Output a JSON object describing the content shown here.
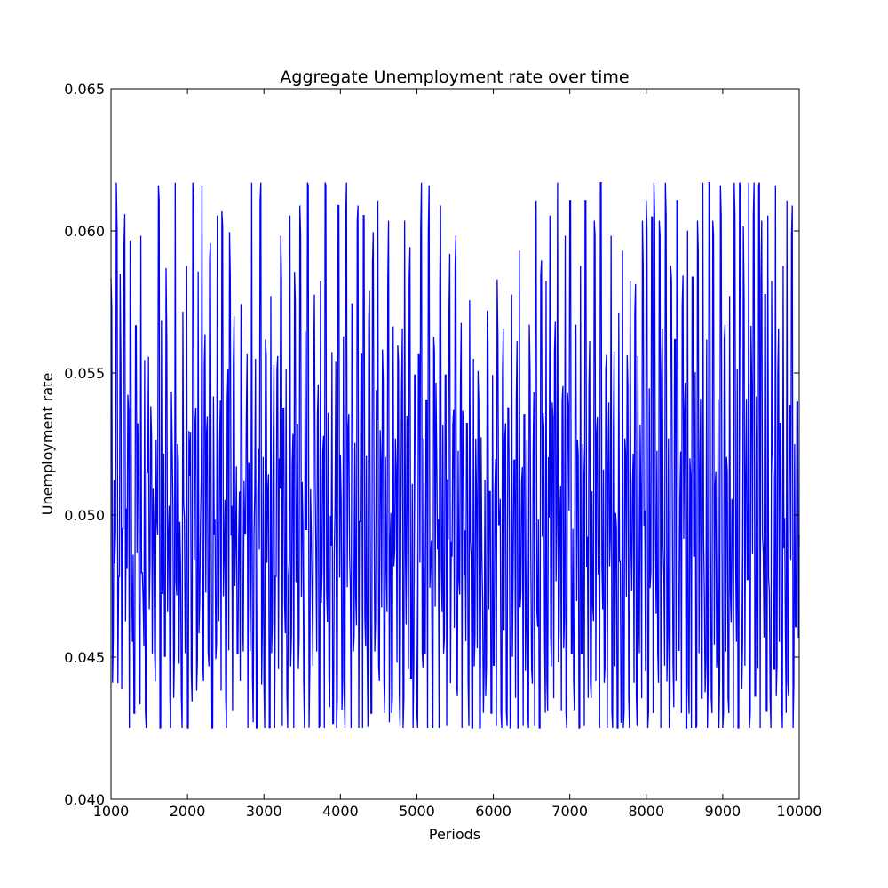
{
  "chart_data": {
    "type": "line",
    "title": "Aggregate Unemployment rate over time",
    "xlabel": "Periods",
    "ylabel": "Unemployment rate",
    "xlim": [
      1000,
      10000
    ],
    "ylim": [
      0.04,
      0.065
    ],
    "xticks": [
      1000,
      2000,
      3000,
      4000,
      5000,
      6000,
      7000,
      8000,
      9000,
      10000
    ],
    "xtick_labels": [
      "1000",
      "2000",
      "3000",
      "4000",
      "5000",
      "6000",
      "7000",
      "8000",
      "9000",
      "10000"
    ],
    "yticks": [
      0.04,
      0.045,
      0.05,
      0.055,
      0.06,
      0.065
    ],
    "ytick_labels": [
      "0.040",
      "0.045",
      "0.050",
      "0.055",
      "0.060",
      "0.065"
    ],
    "grid": false,
    "legend": "none",
    "line_color": "#0000ff",
    "series": [
      {
        "x_start": 1000,
        "x_step": 10,
        "value_min": 0.0425,
        "value_max": 0.0617,
        "value_step": 0.00053,
        "values": [
          0.0578,
          0.0441,
          0.0507,
          0.0483,
          0.0616,
          0.0425,
          0.0489,
          0.0569,
          0.0444,
          0.0511,
          0.059,
          0.0452,
          0.0497,
          0.0537,
          0.0431,
          0.0586,
          0.0466,
          0.0502,
          0.0425,
          0.0556,
          0.0476,
          0.0527,
          0.0444,
          0.0593,
          0.0485,
          0.0459,
          0.0544,
          0.0431,
          0.0515,
          0.0561,
          0.0472,
          0.0533,
          0.0446,
          0.0504,
          0.0452,
          0.0537,
          0.0493,
          0.0616,
          0.0425,
          0.0558,
          0.0483,
          0.0511,
          0.0445,
          0.0571,
          0.0466,
          0.0498,
          0.0431,
          0.0554,
          0.0519,
          0.0441,
          0.0616,
          0.0477,
          0.0525,
          0.0453,
          0.0487,
          0.0431,
          0.0561,
          0.0499,
          0.0462,
          0.0593,
          0.0425,
          0.0519,
          0.0545,
          0.0445,
          0.0616,
          0.0484,
          0.0527,
          0.0433,
          0.0591,
          0.0469,
          0.0502,
          0.0616,
          0.0431,
          0.0553,
          0.0478,
          0.0524,
          0.0452,
          0.0585,
          0.0491,
          0.0425,
          0.0547,
          0.0509,
          0.0444,
          0.0616,
          0.0468,
          0.0535,
          0.0433,
          0.0591,
          0.0482,
          0.0516,
          0.0425,
          0.0546,
          0.0463,
          0.0589,
          0.0498,
          0.0431,
          0.0554,
          0.0475,
          0.0533,
          0.0446,
          0.0503,
          0.0431,
          0.0569,
          0.0452,
          0.0512,
          0.0483,
          0.0546,
          0.0425,
          0.0529,
          0.0468,
          0.0616,
          0.0443,
          0.0498,
          0.0555,
          0.0431,
          0.0518,
          0.0488,
          0.0616,
          0.0451,
          0.0531,
          0.0425,
          0.0567,
          0.0478,
          0.0509,
          0.0441,
          0.0593,
          0.0462,
          0.0537,
          0.0425,
          0.0489,
          0.0556,
          0.0446,
          0.0504,
          0.0593,
          0.0431,
          0.0527,
          0.0469,
          0.0546,
          0.0432,
          0.0489,
          0.0616,
          0.0452,
          0.0518,
          0.0425,
          0.0575,
          0.0487,
          0.0532,
          0.0446,
          0.0593,
          0.0466,
          0.0501,
          0.0425,
          0.0554,
          0.0479,
          0.0616,
          0.0441,
          0.0525,
          0.0488,
          0.0431,
          0.0567,
          0.0502,
          0.0452,
          0.0546,
          0.0431,
          0.0593,
          0.0469,
          0.0512,
          0.0425,
          0.0616,
          0.0473,
          0.0536,
          0.0443,
          0.0505,
          0.0568,
          0.0432,
          0.0487,
          0.0554,
          0.0425,
          0.0593,
          0.0478,
          0.0516,
          0.0442,
          0.0547,
          0.0431,
          0.0616,
          0.0464,
          0.0525,
          0.0491,
          0.0425,
          0.0569,
          0.0452,
          0.0536,
          0.0477,
          0.0593,
          0.0431,
          0.0503,
          0.0546,
          0.0425,
          0.0616,
          0.0459,
          0.0521,
          0.0436,
          0.0563,
          0.0484,
          0.0425,
          0.0589,
          0.0497,
          0.0452,
          0.0544,
          0.0616,
          0.0431,
          0.0514,
          0.0478,
          0.0553,
          0.0425,
          0.0531,
          0.0466,
          0.0593,
          0.0443,
          0.0506,
          0.0425,
          0.0577,
          0.0482,
          0.0527,
          0.0448,
          0.0565,
          0.0431,
          0.0508,
          0.0555,
          0.0425,
          0.0593,
          0.0472,
          0.0519,
          0.0446,
          0.0589,
          0.0453,
          0.0511,
          0.0431,
          0.0544,
          0.0493,
          0.0425,
          0.0567,
          0.0478,
          0.0616,
          0.0441,
          0.0527,
          0.0462,
          0.0551,
          0.0425,
          0.0616,
          0.0485,
          0.0507,
          0.0431,
          0.0568,
          0.0452,
          0.0536,
          0.0488,
          0.0425,
          0.0593,
          0.0466,
          0.0521,
          0.0446,
          0.0544,
          0.0431,
          0.0502,
          0.0576,
          0.0425,
          0.0496,
          0.0537,
          0.0455,
          0.0593,
          0.0431,
          0.0512,
          0.0472,
          0.0557,
          0.0425,
          0.0542,
          0.0484,
          0.0445,
          0.0527,
          0.0431,
          0.0565,
          0.0491,
          0.0425,
          0.0555,
          0.0452,
          0.0511,
          0.0469,
          0.0556,
          0.0425,
          0.0538,
          0.0481,
          0.0441,
          0.0523,
          0.0431,
          0.0556,
          0.0472,
          0.0503,
          0.0425,
          0.0544,
          0.0463,
          0.0525,
          0.0431,
          0.0567,
          0.0486,
          0.0511,
          0.0425,
          0.0555,
          0.0454,
          0.0527,
          0.0431,
          0.0543,
          0.0481,
          0.0425,
          0.0567,
          0.0466,
          0.0514,
          0.0441,
          0.0556,
          0.0425,
          0.0593,
          0.0478,
          0.0501,
          0.0431,
          0.0546,
          0.0461,
          0.0521,
          0.0425,
          0.0567,
          0.0485,
          0.0446,
          0.0538,
          0.0431,
          0.0616,
          0.0466,
          0.0509,
          0.0425,
          0.0579,
          0.0487,
          0.0536,
          0.0441,
          0.0593,
          0.0431,
          0.0515,
          0.0616,
          0.0452,
          0.0529,
          0.0425,
          0.0568,
          0.0482,
          0.0616,
          0.0443,
          0.0505,
          0.0431,
          0.0556,
          0.0469,
          0.0593,
          0.0425,
          0.0527,
          0.0491,
          0.0616,
          0.0446,
          0.0511,
          0.0431,
          0.0567,
          0.0475,
          0.0537,
          0.0425,
          0.0593,
          0.0462,
          0.0525,
          0.0431,
          0.0616,
          0.0487,
          0.0441,
          0.0556,
          0.0425,
          0.0519,
          0.0468,
          0.0593,
          0.0431,
          0.0545,
          0.0495,
          0.0425,
          0.0616,
          0.0472,
          0.0516,
          0.0441,
          0.0567,
          0.0425,
          0.0529,
          0.0482,
          0.0593,
          0.0431,
          0.0547,
          0.0452,
          0.0506,
          0.0425,
          0.0566,
          0.0489,
          0.0443,
          0.0593,
          0.0431,
          0.0527,
          0.0466,
          0.0551,
          0.0425,
          0.0593,
          0.0484,
          0.0511,
          0.0441,
          0.0576,
          0.0431,
          0.0556,
          0.0462,
          0.0521,
          0.0425,
          0.0593,
          0.0491,
          0.0445,
          0.0616,
          0.0431,
          0.0534,
          0.0469,
          0.0589,
          0.0425,
          0.0616,
          0.0476,
          0.0512,
          0.0441,
          0.0593,
          0.0425,
          0.0555,
          0.0484,
          0.0431,
          0.0616,
          0.0452,
          0.0527,
          0.0425,
          0.0593,
          0.0498,
          0.0443,
          0.0567,
          0.0431,
          0.0616,
          0.0463,
          0.0517,
          0.0425,
          0.0579,
          0.0481,
          0.0536,
          0.0431,
          0.0616,
          0.0446,
          0.0504,
          0.0425,
          0.0589,
          0.0475,
          0.0545,
          0.0431,
          0.0593,
          0.0462,
          0.0525,
          0.0425,
          0.0616,
          0.0482,
          0.0443,
          0.0567,
          0.0431,
          0.0616,
          0.0499,
          0.0425,
          0.0593,
          0.0465,
          0.0526,
          0.0441,
          0.0546,
          0.0431,
          0.0616,
          0.0487,
          0.0425,
          0.0567,
          0.0452,
          0.0531,
          0.0425,
          0.0593,
          0.0478,
          0.0511,
          0.0431,
          0.0616,
          0.0466,
          0.0546,
          0.0425,
          0.0616,
          0.0493,
          0.0444,
          0.0591,
          0.0431,
          0.0525,
          0.0472,
          0.0616,
          0.0425,
          0.0556,
          0.0481,
          0.0616,
          0.0431,
          0.0547,
          0.0462,
          0.0616,
          0.0425,
          0.0593,
          0.0487,
          0.0441,
          0.0567,
          0.0431,
          0.0616,
          0.0478,
          0.0425,
          0.0593,
          0.0513,
          0.0446,
          0.0616,
          0.0431,
          0.0555,
          0.0466,
          0.0527,
          0.0425,
          0.0593,
          0.0499,
          0.0441,
          0.0616,
          0.0431,
          0.0544,
          0.0484,
          0.0593,
          0.0425,
          0.0525,
          0.0466,
          0.0545,
          0.0446,
          0.0493
        ]
      }
    ]
  }
}
